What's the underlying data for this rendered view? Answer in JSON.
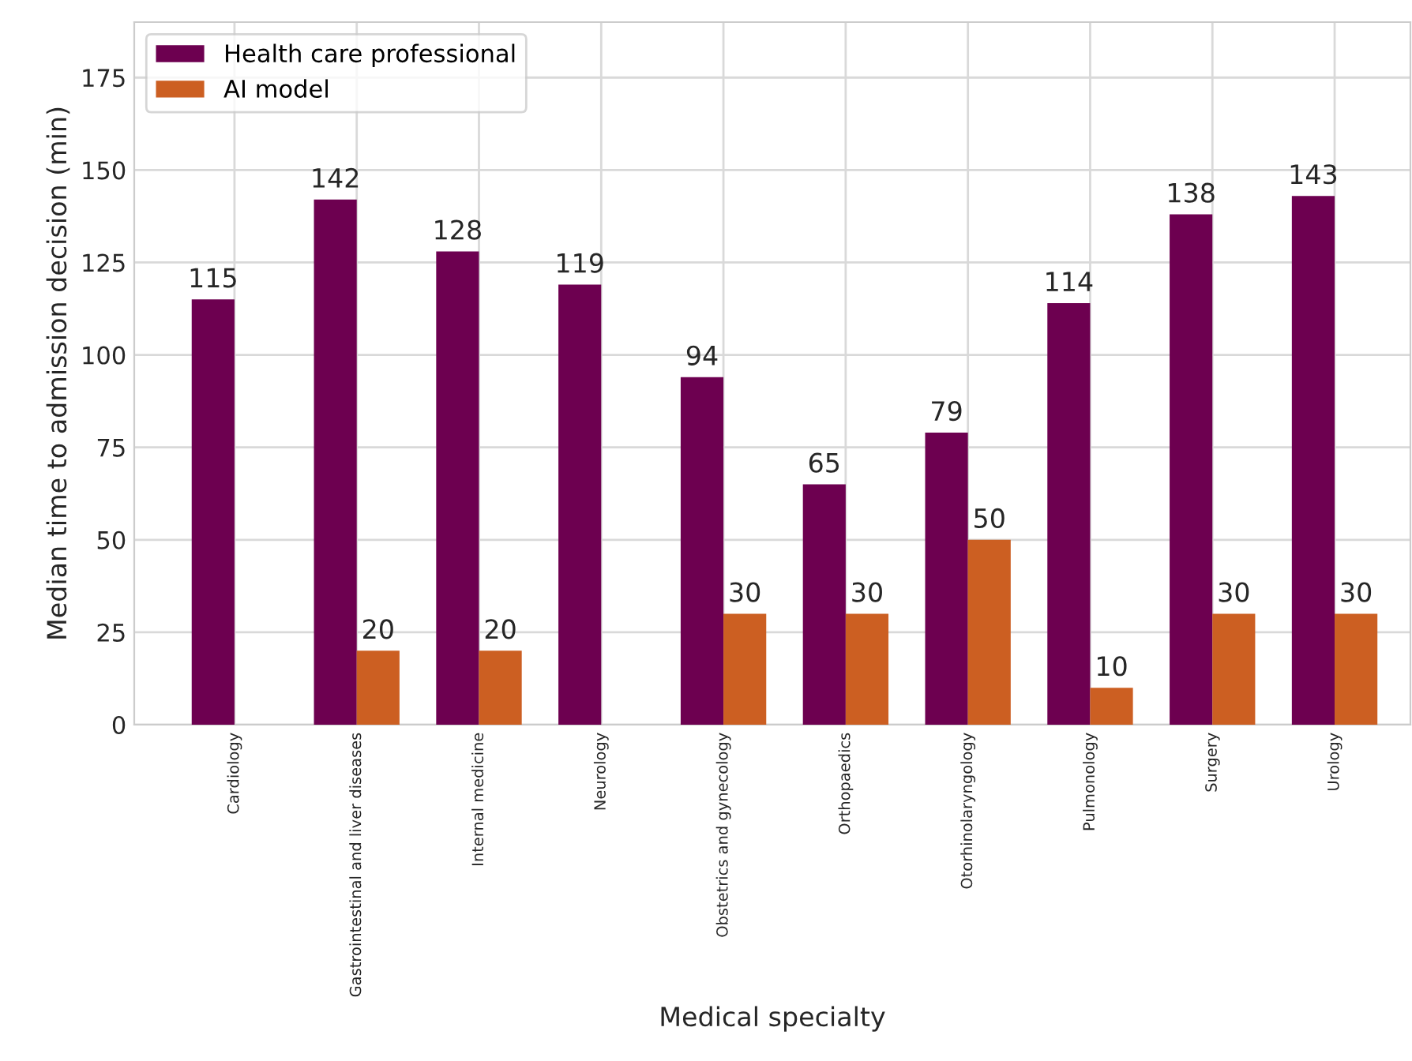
{
  "chart_data": {
    "type": "bar",
    "xlabel": "Medical specialty",
    "ylabel": "Median time to admission decision (min)",
    "categories": [
      "Cardiology",
      "Gastrointestinal and liver diseases",
      "Internal medicine",
      "Neurology",
      "Obstetrics and gynecology",
      "Orthopaedics",
      "Otorhinolaryngology",
      "Pulmonology",
      "Surgery",
      "Urology"
    ],
    "series": [
      {
        "name": "Health care professional",
        "color": "#6d0050",
        "values": [
          115,
          142,
          128,
          119,
          94,
          65,
          79,
          114,
          138,
          143
        ]
      },
      {
        "name": "AI model",
        "color": "#cc5f22",
        "values": [
          null,
          20,
          20,
          null,
          30,
          30,
          50,
          10,
          30,
          30
        ]
      }
    ],
    "ylim": [
      0,
      190
    ],
    "yticks": [
      0,
      25,
      50,
      75,
      100,
      125,
      150,
      175
    ],
    "grid": true,
    "legend": "top left",
    "data_labels": true
  }
}
